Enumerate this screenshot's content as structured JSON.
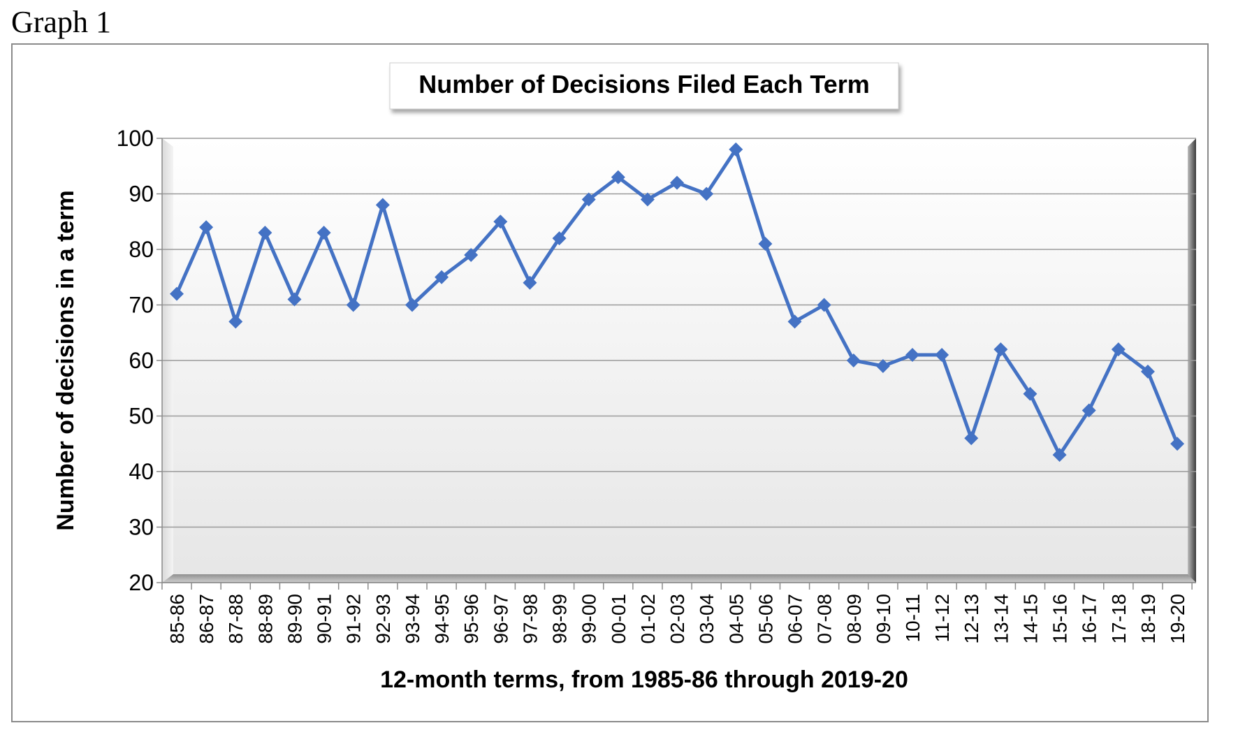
{
  "figure_label": "Graph 1",
  "chart_data": {
    "type": "line",
    "title": "Number of Decisions Filed Each Term",
    "xlabel": "12-month terms, from 1985-86 through 2019-20",
    "ylabel": "Number of decisions in a term",
    "ylim": [
      20,
      100
    ],
    "yticks": [
      20,
      30,
      40,
      50,
      60,
      70,
      80,
      90,
      100
    ],
    "grid": true,
    "legend": "none",
    "categories": [
      "85-86",
      "86-87",
      "87-88",
      "88-89",
      "89-90",
      "90-91",
      "91-92",
      "92-93",
      "93-94",
      "94-95",
      "95-96",
      "96-97",
      "97-98",
      "98-99",
      "99-00",
      "00-01",
      "01-02",
      "02-03",
      "03-04",
      "04-05",
      "05-06",
      "06-07",
      "07-08",
      "08-09",
      "09-10",
      "10-11",
      "11-12",
      "12-13",
      "13-14",
      "14-15",
      "15-16",
      "16-17",
      "17-18",
      "18-19",
      "19-20"
    ],
    "series": [
      {
        "color": "#4472C4",
        "marker": "diamond",
        "values": [
          72,
          84,
          67,
          83,
          71,
          83,
          70,
          88,
          70,
          75,
          79,
          85,
          74,
          82,
          89,
          93,
          89,
          92,
          90,
          98,
          81,
          67,
          70,
          60,
          59,
          61,
          61,
          46,
          62,
          54,
          43,
          51,
          62,
          58,
          45
        ]
      }
    ]
  }
}
